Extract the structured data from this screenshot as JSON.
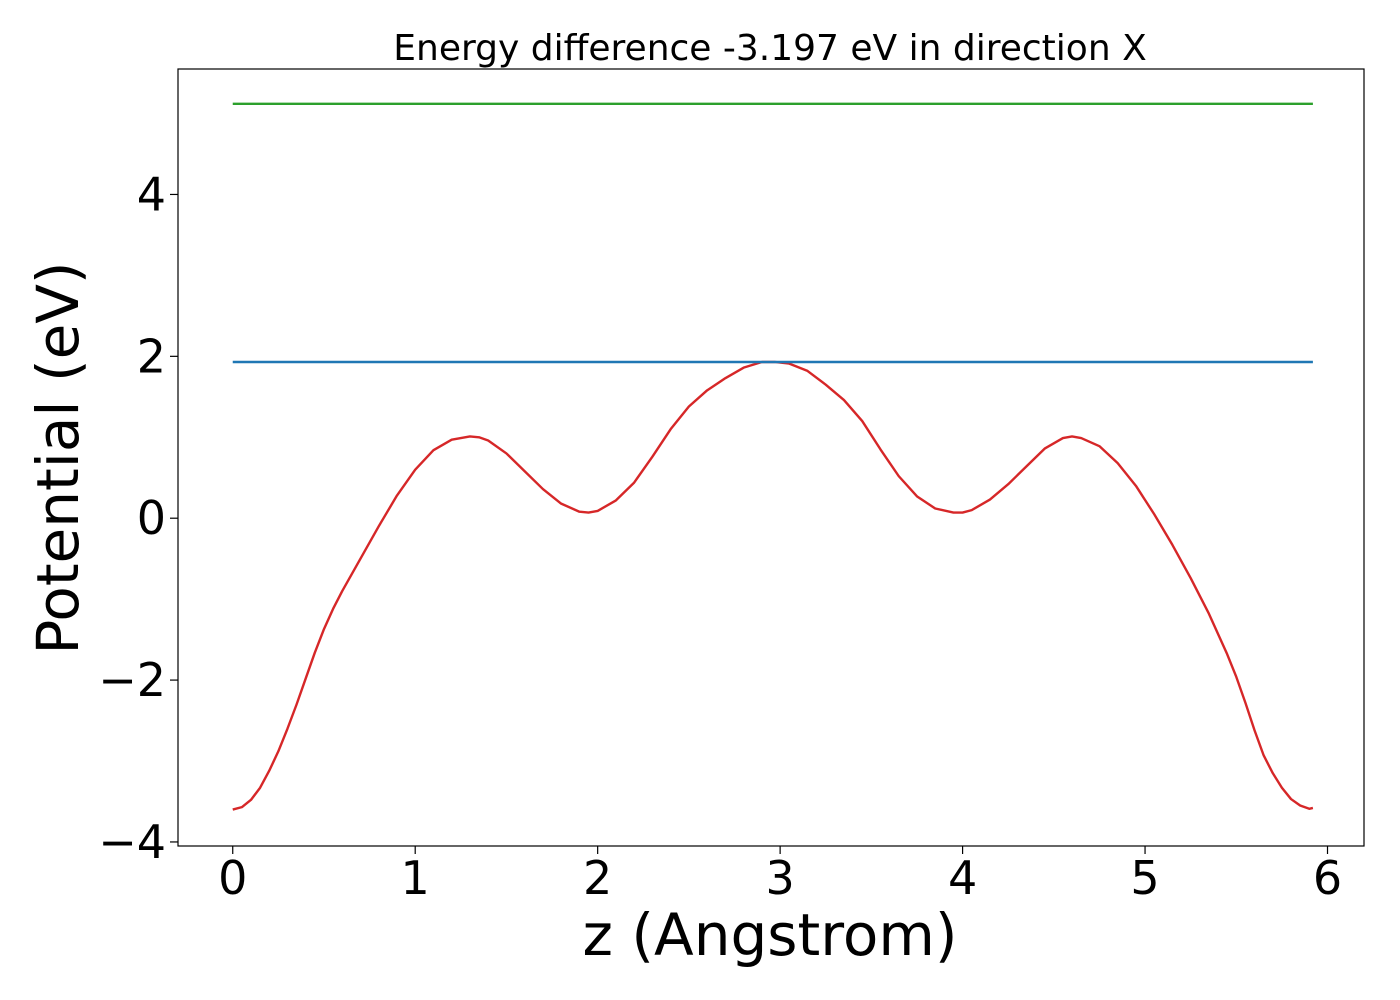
{
  "chart_data": {
    "type": "line",
    "title": "Energy difference -3.197 eV in direction X",
    "xlabel": "z (Angstrom)",
    "ylabel": "Potential (eV)",
    "xlim": [
      -0.3,
      6.2
    ],
    "ylim": [
      -4.05,
      5.55
    ],
    "xticks": [
      0,
      1,
      2,
      3,
      4,
      5,
      6
    ],
    "xtick_labels": [
      "0",
      "1",
      "2",
      "3",
      "4",
      "5",
      "6"
    ],
    "yticks": [
      -4,
      -2,
      0,
      2,
      4
    ],
    "ytick_labels": [
      "−4",
      "−2",
      "0",
      "2",
      "4"
    ],
    "grid": false,
    "series": [
      {
        "color": "#d62728",
        "x": [
          0,
          0.05,
          0.1,
          0.15,
          0.2,
          0.25,
          0.3,
          0.35,
          0.4,
          0.45,
          0.5,
          0.55,
          0.6,
          0.7,
          0.8,
          0.9,
          1.0,
          1.1,
          1.2,
          1.3,
          1.35,
          1.4,
          1.5,
          1.6,
          1.7,
          1.8,
          1.9,
          1.95,
          2.0,
          2.1,
          2.2,
          2.3,
          2.4,
          2.5,
          2.6,
          2.7,
          2.8,
          2.9,
          2.97,
          3.05,
          3.15,
          3.25,
          3.35,
          3.45,
          3.55,
          3.65,
          3.75,
          3.85,
          3.95,
          4.0,
          4.05,
          4.15,
          4.25,
          4.35,
          4.45,
          4.55,
          4.6,
          4.65,
          4.75,
          4.85,
          4.95,
          5.05,
          5.15,
          5.25,
          5.35,
          5.45,
          5.5,
          5.55,
          5.6,
          5.65,
          5.7,
          5.75,
          5.8,
          5.85,
          5.9,
          5.92
        ],
        "y": [
          -3.6,
          -3.57,
          -3.48,
          -3.33,
          -3.12,
          -2.88,
          -2.6,
          -2.3,
          -1.98,
          -1.66,
          -1.37,
          -1.12,
          -0.9,
          -0.5,
          -0.1,
          0.28,
          0.6,
          0.84,
          0.97,
          1.01,
          1.0,
          0.96,
          0.8,
          0.58,
          0.36,
          0.18,
          0.08,
          0.07,
          0.09,
          0.22,
          0.44,
          0.76,
          1.1,
          1.38,
          1.58,
          1.73,
          1.86,
          1.93,
          1.93,
          1.91,
          1.82,
          1.65,
          1.46,
          1.2,
          0.85,
          0.52,
          0.27,
          0.12,
          0.07,
          0.07,
          0.1,
          0.23,
          0.42,
          0.64,
          0.86,
          0.99,
          1.01,
          0.99,
          0.89,
          0.68,
          0.4,
          0.05,
          -0.33,
          -0.74,
          -1.18,
          -1.68,
          -1.96,
          -2.28,
          -2.62,
          -2.93,
          -3.15,
          -3.33,
          -3.47,
          -3.55,
          -3.59,
          -3.58
        ]
      },
      {
        "color": "#1f77b4",
        "x": [
          0,
          5.92
        ],
        "y": [
          1.93,
          1.93
        ]
      },
      {
        "color": "#2ca02c",
        "x": [
          0,
          5.92
        ],
        "y": [
          5.12,
          5.12
        ]
      }
    ]
  }
}
